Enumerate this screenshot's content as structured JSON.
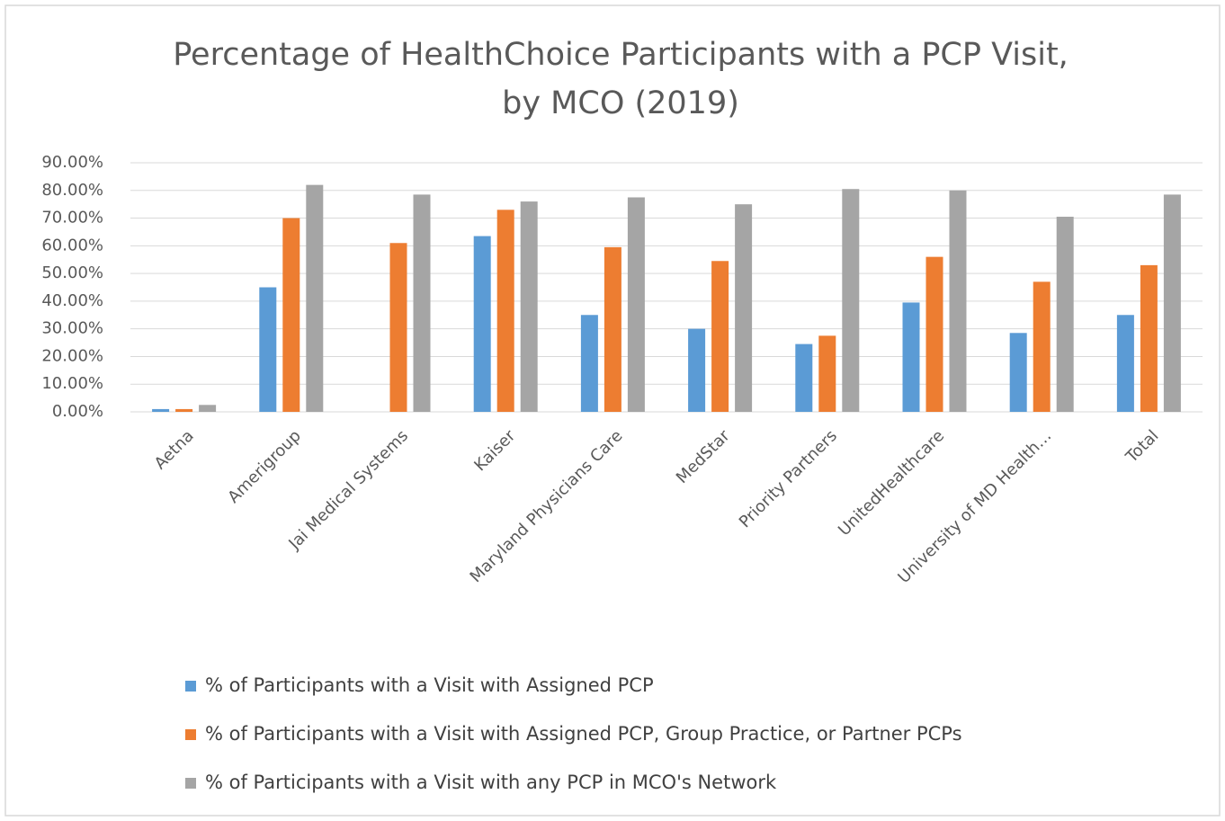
{
  "chart_data": {
    "type": "bar",
    "title": [
      "Percentage of HealthChoice Participants with a PCP Visit,",
      "by MCO (2019)"
    ],
    "categories": [
      "Aetna",
      "Amerigroup",
      "Jai Medical Systems",
      "Kaiser",
      "Maryland Physicians Care",
      "MedStar",
      "Priority Partners",
      "UnitedHealthcare",
      "University of MD Health…",
      "Total"
    ],
    "series": [
      {
        "name": "% of Participants with a Visit with Assigned PCP",
        "color": "#5b9bd5",
        "values": [
          1,
          45,
          null,
          63.5,
          35,
          30,
          24.5,
          39.5,
          28.5,
          35
        ]
      },
      {
        "name": "% of Participants with a Visit with Assigned PCP, Group Practice, or Partner PCPs",
        "color": "#ed7d31",
        "values": [
          1,
          70,
          61,
          73,
          59.5,
          54.5,
          27.5,
          56,
          47,
          53
        ]
      },
      {
        "name": "% of Participants with a Visit with any PCP in MCO's Network",
        "color": "#a5a5a5",
        "values": [
          2.5,
          82,
          78.5,
          76,
          77.5,
          75,
          80.5,
          80,
          70.5,
          78.5
        ]
      }
    ],
    "ylim": [
      0,
      90
    ],
    "yticks": [
      {
        "value": 0,
        "label": "0.00%"
      },
      {
        "value": 10,
        "label": "10.00%"
      },
      {
        "value": 20,
        "label": "20.00%"
      },
      {
        "value": 30,
        "label": "30.00%"
      },
      {
        "value": 40,
        "label": "40.00%"
      },
      {
        "value": 50,
        "label": "50.00%"
      },
      {
        "value": 60,
        "label": "60.00%"
      },
      {
        "value": 70,
        "label": "70.00%"
      },
      {
        "value": 80,
        "label": "80.00%"
      },
      {
        "value": 90,
        "label": "90.00%"
      }
    ],
    "grid": true,
    "legend": "bottom"
  }
}
